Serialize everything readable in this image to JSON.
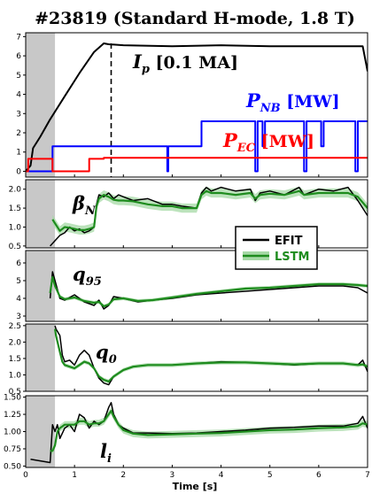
{
  "title": "#23819 (Standard H-mode, 1.8 T)",
  "xlabel": "Time [s]",
  "xticks": [
    "0",
    "1",
    "2",
    "3",
    "4",
    "5",
    "6",
    "7"
  ],
  "xlim": [
    0,
    7
  ],
  "shade_end": 0.6,
  "dashed_line_x": 1.75,
  "colors": {
    "efit": "#000000",
    "lstm": "#1e8c1e",
    "band": "#a6d9a6",
    "nb": "#0000ff",
    "ec": "#ff0000",
    "shade": "#c8c8c8"
  },
  "legend": {
    "efit": "EFIT",
    "lstm": "LSTM"
  },
  "chart_data": [
    {
      "type": "line",
      "panel": "overview",
      "ylim": [
        -0.3,
        7.2
      ],
      "yticks": [
        "0",
        "1",
        "2",
        "3",
        "4",
        "5",
        "6",
        "7"
      ],
      "annotations": [
        {
          "main": "I",
          "sub": "p",
          "unit": " [0.1 MA]",
          "color": "#000000"
        },
        {
          "main": "P",
          "sub": "NB",
          "unit": " [MW]",
          "color": "#0000ff"
        },
        {
          "main": "P",
          "sub": "EC",
          "unit": " [MW]",
          "color": "#ff0000"
        }
      ],
      "series": [
        {
          "key": "Ip",
          "color": "#000000",
          "x": [
            0,
            0.1,
            0.15,
            0.3,
            0.5,
            0.8,
            1.1,
            1.4,
            1.6,
            1.7,
            2.0,
            3.0,
            4.0,
            5.0,
            6.0,
            6.9,
            7.0
          ],
          "y": [
            0,
            0.3,
            1.2,
            1.8,
            2.7,
            3.9,
            5.1,
            6.2,
            6.65,
            6.6,
            6.55,
            6.5,
            6.55,
            6.5,
            6.5,
            6.5,
            5.2
          ]
        },
        {
          "key": "PNB",
          "color": "#0000ff",
          "x": [
            0,
            0.55,
            0.55,
            2.9,
            2.9,
            2.92,
            2.92,
            3.6,
            3.6,
            4.7,
            4.7,
            4.75,
            4.75,
            4.85,
            4.85,
            4.9,
            4.9,
            5.7,
            5.7,
            5.75,
            5.75,
            6.05,
            6.05,
            6.1,
            6.1,
            6.75,
            6.75,
            6.8,
            6.8,
            7.0
          ],
          "y": [
            0,
            0,
            1.3,
            1.3,
            0,
            0,
            1.3,
            1.3,
            2.6,
            2.6,
            0,
            0,
            2.6,
            2.6,
            1.3,
            1.3,
            2.6,
            2.6,
            0,
            0,
            2.6,
            2.6,
            1.3,
            1.3,
            2.6,
            2.6,
            0,
            0,
            2.6,
            2.6
          ]
        },
        {
          "key": "PEC",
          "color": "#ff0000",
          "x": [
            0,
            0.05,
            0.05,
            0.55,
            0.55,
            1.3,
            1.3,
            1.6,
            1.6,
            7.0
          ],
          "y": [
            0,
            0,
            0.65,
            0.65,
            0,
            0,
            0.65,
            0.65,
            0.7,
            0.7
          ]
        }
      ]
    },
    {
      "type": "line",
      "panel": "beta_n",
      "ylim": [
        0.45,
        2.25
      ],
      "yticks": [
        "0.5",
        "1.0",
        "1.5",
        "2.0"
      ],
      "label": {
        "main": "β",
        "sub": "N"
      },
      "efit": {
        "x": [
          0.5,
          0.7,
          0.8,
          0.9,
          1.0,
          1.1,
          1.2,
          1.3,
          1.4,
          1.45,
          1.5,
          1.6,
          1.7,
          1.8,
          1.9,
          2.0,
          2.2,
          2.5,
          2.8,
          3.0,
          3.2,
          3.5,
          3.6,
          3.7,
          3.8,
          4.0,
          4.3,
          4.6,
          4.7,
          4.8,
          5.0,
          5.3,
          5.6,
          5.7,
          6.0,
          6.3,
          6.6,
          6.8,
          7.0
        ],
        "y": [
          0.5,
          0.78,
          0.85,
          1.0,
          0.9,
          0.95,
          0.85,
          0.9,
          1.0,
          1.6,
          1.85,
          1.8,
          1.9,
          1.75,
          1.85,
          1.8,
          1.7,
          1.75,
          1.6,
          1.6,
          1.55,
          1.5,
          1.9,
          2.05,
          1.95,
          2.05,
          1.95,
          2.0,
          1.7,
          1.9,
          1.95,
          1.85,
          2.05,
          1.85,
          2.0,
          1.95,
          2.05,
          1.7,
          1.3
        ]
      },
      "lstm": {
        "x": [
          0.55,
          0.7,
          0.8,
          0.9,
          1.0,
          1.1,
          1.2,
          1.3,
          1.4,
          1.45,
          1.5,
          1.6,
          1.7,
          1.8,
          1.9,
          2.0,
          2.2,
          2.5,
          2.8,
          3.0,
          3.2,
          3.5,
          3.6,
          3.7,
          3.8,
          4.0,
          4.3,
          4.6,
          4.7,
          4.8,
          5.0,
          5.3,
          5.6,
          5.7,
          6.0,
          6.3,
          6.6,
          6.8,
          7.0
        ],
        "y": [
          1.2,
          0.9,
          1.0,
          0.98,
          0.95,
          0.92,
          0.92,
          0.95,
          1.0,
          1.55,
          1.75,
          1.85,
          1.8,
          1.72,
          1.7,
          1.7,
          1.68,
          1.6,
          1.55,
          1.55,
          1.5,
          1.5,
          1.85,
          1.95,
          1.9,
          1.9,
          1.85,
          1.9,
          1.75,
          1.85,
          1.88,
          1.85,
          1.95,
          1.85,
          1.9,
          1.9,
          1.9,
          1.8,
          1.5
        ],
        "band": 0.12
      }
    },
    {
      "type": "line",
      "panel": "q95",
      "ylim": [
        2.7,
        6.7
      ],
      "yticks": [
        "3",
        "4",
        "5",
        "6"
      ],
      "label": {
        "main": "q",
        "sub": "95"
      },
      "efit": {
        "x": [
          0.5,
          0.55,
          0.6,
          0.7,
          0.8,
          1.0,
          1.2,
          1.4,
          1.5,
          1.6,
          1.7,
          1.8,
          2.0,
          2.3,
          2.6,
          3.0,
          3.5,
          4.0,
          4.5,
          5.0,
          5.5,
          6.0,
          6.5,
          6.8,
          7.0
        ],
        "y": [
          4.0,
          5.5,
          5.0,
          4.0,
          3.9,
          4.2,
          3.8,
          3.6,
          3.9,
          3.4,
          3.6,
          4.1,
          4.0,
          3.8,
          3.9,
          4.0,
          4.2,
          4.3,
          4.4,
          4.5,
          4.6,
          4.7,
          4.7,
          4.6,
          4.3
        ]
      },
      "lstm": {
        "x": [
          0.5,
          0.55,
          0.6,
          0.7,
          0.8,
          1.0,
          1.2,
          1.4,
          1.5,
          1.6,
          1.7,
          1.8,
          2.0,
          2.3,
          2.6,
          3.0,
          3.5,
          4.0,
          4.5,
          5.0,
          5.5,
          6.0,
          6.5,
          6.8,
          7.0
        ],
        "y": [
          4.3,
          5.2,
          4.7,
          4.1,
          3.95,
          4.05,
          3.85,
          3.75,
          3.8,
          3.55,
          3.65,
          3.95,
          4.0,
          3.85,
          3.9,
          4.05,
          4.25,
          4.4,
          4.55,
          4.6,
          4.7,
          4.8,
          4.8,
          4.75,
          4.7
        ],
        "band": 0.1
      }
    },
    {
      "type": "line",
      "panel": "q0",
      "ylim": [
        0.5,
        2.55
      ],
      "yticks": [
        "0.5",
        "1.0",
        "1.5",
        "2.0",
        "2.5"
      ],
      "label": {
        "main": "q",
        "sub": "0"
      },
      "efit": {
        "x": [
          0.6,
          0.62,
          0.7,
          0.75,
          0.8,
          0.9,
          1.0,
          1.1,
          1.2,
          1.3,
          1.4,
          1.5,
          1.6,
          1.7,
          1.8,
          2.0,
          2.2,
          2.5,
          3.0,
          3.5,
          4.0,
          4.5,
          5.0,
          5.5,
          6.0,
          6.5,
          6.8,
          6.9,
          7.0
        ],
        "y": [
          2.5,
          2.4,
          2.2,
          1.6,
          1.4,
          1.45,
          1.3,
          1.6,
          1.75,
          1.6,
          1.2,
          0.9,
          0.75,
          0.7,
          0.95,
          1.15,
          1.25,
          1.3,
          1.3,
          1.35,
          1.4,
          1.38,
          1.35,
          1.3,
          1.35,
          1.35,
          1.3,
          1.45,
          1.1
        ]
      },
      "lstm": {
        "x": [
          0.6,
          0.62,
          0.7,
          0.75,
          0.8,
          0.9,
          1.0,
          1.1,
          1.2,
          1.3,
          1.4,
          1.5,
          1.6,
          1.7,
          1.8,
          2.0,
          2.2,
          2.5,
          3.0,
          3.5,
          4.0,
          4.5,
          5.0,
          5.5,
          6.0,
          6.5,
          6.8,
          6.9,
          7.0
        ],
        "y": [
          2.4,
          2.2,
          1.7,
          1.4,
          1.3,
          1.25,
          1.2,
          1.3,
          1.4,
          1.35,
          1.2,
          0.95,
          0.85,
          0.8,
          0.95,
          1.15,
          1.25,
          1.3,
          1.3,
          1.35,
          1.38,
          1.38,
          1.35,
          1.32,
          1.35,
          1.35,
          1.3,
          1.32,
          1.25
        ],
        "band": 0.06
      }
    },
    {
      "type": "line",
      "panel": "li",
      "ylim": [
        0.48,
        1.52
      ],
      "yticks": [
        "0.50",
        "0.75",
        "1.00",
        "1.25",
        "1.50"
      ],
      "label": {
        "main": "l",
        "sub": "i"
      },
      "efit": {
        "x": [
          0.1,
          0.5,
          0.55,
          0.6,
          0.65,
          0.7,
          0.8,
          0.9,
          1.0,
          1.1,
          1.2,
          1.3,
          1.4,
          1.5,
          1.6,
          1.7,
          1.75,
          1.8,
          1.9,
          2.0,
          2.2,
          2.5,
          3.0,
          3.5,
          4.0,
          4.5,
          5.0,
          5.5,
          6.0,
          6.5,
          6.8,
          6.9,
          7.0
        ],
        "y": [
          0.6,
          0.55,
          1.1,
          1.0,
          1.1,
          0.9,
          1.05,
          1.1,
          1.0,
          1.25,
          1.2,
          1.05,
          1.15,
          1.1,
          1.15,
          1.35,
          1.42,
          1.25,
          1.1,
          1.05,
          0.98,
          0.98,
          0.97,
          0.98,
          1.0,
          1.02,
          1.05,
          1.06,
          1.08,
          1.08,
          1.12,
          1.22,
          1.05
        ]
      },
      "lstm": {
        "x": [
          0.5,
          0.55,
          0.6,
          0.65,
          0.7,
          0.8,
          0.9,
          1.0,
          1.1,
          1.2,
          1.3,
          1.4,
          1.5,
          1.6,
          1.7,
          1.75,
          1.8,
          1.9,
          2.0,
          2.2,
          2.5,
          3.0,
          3.5,
          4.0,
          4.5,
          5.0,
          5.5,
          6.0,
          6.5,
          6.8,
          6.9,
          7.0
        ],
        "y": [
          0.72,
          0.72,
          0.8,
          1.0,
          1.05,
          1.1,
          1.1,
          1.1,
          1.15,
          1.15,
          1.1,
          1.12,
          1.12,
          1.15,
          1.25,
          1.3,
          1.22,
          1.1,
          1.02,
          0.97,
          0.95,
          0.96,
          0.97,
          0.98,
          1.0,
          1.02,
          1.03,
          1.05,
          1.06,
          1.08,
          1.12,
          1.1
        ],
        "band": 0.05
      }
    }
  ]
}
